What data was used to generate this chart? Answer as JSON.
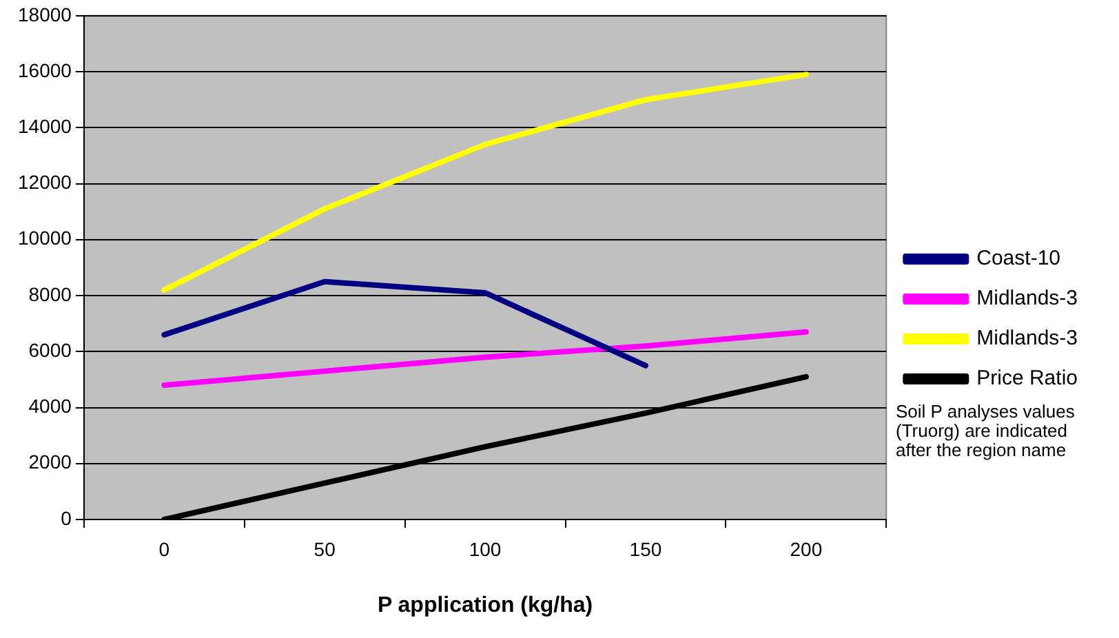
{
  "chart_data": {
    "type": "line",
    "xlabel": "P application (kg/ha)",
    "categories": [
      "0",
      "50",
      "100",
      "150",
      "200"
    ],
    "series": [
      {
        "name": "Coast-10",
        "color": "#000080",
        "values": [
          6600,
          8500,
          8100,
          5500,
          null
        ]
      },
      {
        "name": "Midlands-3",
        "color": "#ff00ff",
        "values": [
          4800,
          5300,
          5800,
          6200,
          6700
        ]
      },
      {
        "name": "Midlands-3",
        "color": "#ffff00",
        "values": [
          8200,
          11100,
          13400,
          15000,
          15900
        ]
      },
      {
        "name": "Price Ratio",
        "color": "#000000",
        "values": [
          0,
          1300,
          2600,
          3800,
          5100
        ]
      }
    ],
    "ylim": [
      0,
      18000
    ],
    "yticks": [
      0,
      2000,
      4000,
      6000,
      8000,
      10000,
      12000,
      14000,
      16000,
      18000
    ],
    "grid": "y",
    "legend": "right",
    "marker": "none",
    "line_style": "solid",
    "annotations": [
      "Soil P analyses values (Truorg) are indicated after the region name"
    ]
  }
}
